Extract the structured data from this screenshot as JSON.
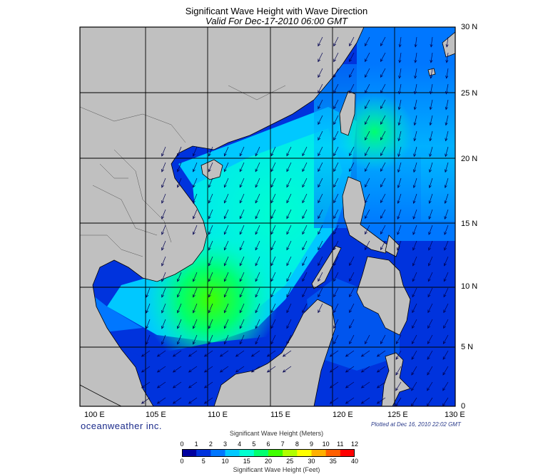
{
  "title": "Significant Wave Height with Wave Direction",
  "subtitle": "Valid For Dec-17-2010 06:00 GMT",
  "footer": {
    "brand": "oceanweather inc.",
    "plotted": "Plotted at Dec 16, 2010 22:02 GMT"
  },
  "axes": {
    "lon_labels": [
      "100 E",
      "105 E",
      "110 E",
      "115 E",
      "120 E",
      "125 E",
      "130 E"
    ],
    "lat_labels": [
      "30 N",
      "25 N",
      "20 N",
      "15 N",
      "10 N",
      "5 N",
      "0"
    ]
  },
  "legend": {
    "meters_title": "Significant Wave Height (Meters)",
    "feet_title": "Significant Wave Height (Feet)",
    "meters_ticks": [
      "0",
      "1",
      "2",
      "3",
      "4",
      "5",
      "6",
      "7",
      "8",
      "9",
      "10",
      "11",
      "12"
    ],
    "feet_ticks": [
      "0",
      "5",
      "10",
      "15",
      "20",
      "25",
      "30",
      "35",
      "40"
    ],
    "colors": [
      "#0000a0",
      "#0033dd",
      "#0077ff",
      "#00c8ff",
      "#00ffd0",
      "#00ff70",
      "#40ff00",
      "#b0ff00",
      "#ffff00",
      "#ffb000",
      "#ff6000",
      "#ff0000"
    ]
  },
  "colors": {
    "land": "#c0c0c0",
    "deep_sea": "#0000a0",
    "coast": "#000000",
    "arrows": "#000060"
  }
}
